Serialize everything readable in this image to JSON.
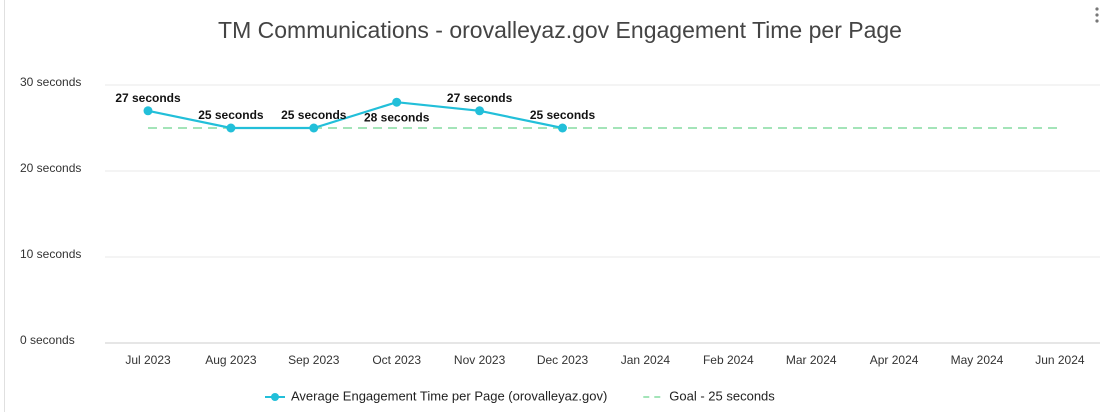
{
  "chart_data": {
    "type": "line",
    "title": "TM Communications - orovalleyaz.gov Engagement Time per Page",
    "categories": [
      "Jul 2023",
      "Aug 2023",
      "Sep 2023",
      "Oct 2023",
      "Nov 2023",
      "Dec 2023",
      "Jan 2024",
      "Feb 2024",
      "Mar 2024",
      "Apr 2024",
      "May 2024",
      "Jun 2024"
    ],
    "series": [
      {
        "name": "Average Engagement Time per Page (orovalleyaz.gov)",
        "color": "#22bfd9",
        "values": [
          27,
          25,
          25,
          28,
          27,
          25,
          null,
          null,
          null,
          null,
          null,
          null
        ],
        "value_labels": [
          "27 seconds",
          "25 seconds",
          "25 seconds",
          "28 seconds",
          "27 seconds",
          "25 seconds",
          null,
          null,
          null,
          null,
          null,
          null
        ]
      },
      {
        "name": "Goal - 25 seconds",
        "color": "#a3e4b8",
        "dashed": true,
        "values": [
          25,
          25,
          25,
          25,
          25,
          25,
          25,
          25,
          25,
          25,
          25,
          25
        ]
      }
    ],
    "ylim": [
      0,
      30
    ],
    "yticks": [
      {
        "value": 0,
        "label": "0 seconds"
      },
      {
        "value": 10,
        "label": "10 seconds"
      },
      {
        "value": 20,
        "label": "20 seconds"
      },
      {
        "value": 30,
        "label": "30 seconds"
      }
    ],
    "grid": true,
    "legend": "bottom"
  }
}
